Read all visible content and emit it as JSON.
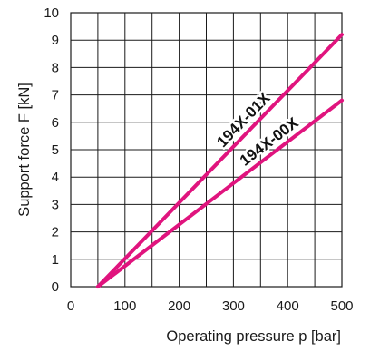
{
  "chart_data": {
    "type": "line",
    "xlabel": "Operating pressure p [bar]",
    "ylabel": "Support force F [kN]",
    "xlim": [
      0,
      500
    ],
    "ylim": [
      0,
      10
    ],
    "x_ticks": [
      "0",
      "100",
      "200",
      "300",
      "400",
      "500"
    ],
    "y_ticks": [
      "0",
      "1",
      "2",
      "3",
      "4",
      "5",
      "6",
      "7",
      "8",
      "9",
      "10"
    ],
    "grid": true,
    "legend": "none",
    "series_color": "#e0147e",
    "series": [
      {
        "name": "194X-01X",
        "x": [
          50,
          500
        ],
        "y": [
          0,
          9.2
        ]
      },
      {
        "name": "194X-00X",
        "x": [
          50,
          500
        ],
        "y": [
          0,
          6.8
        ]
      }
    ]
  }
}
